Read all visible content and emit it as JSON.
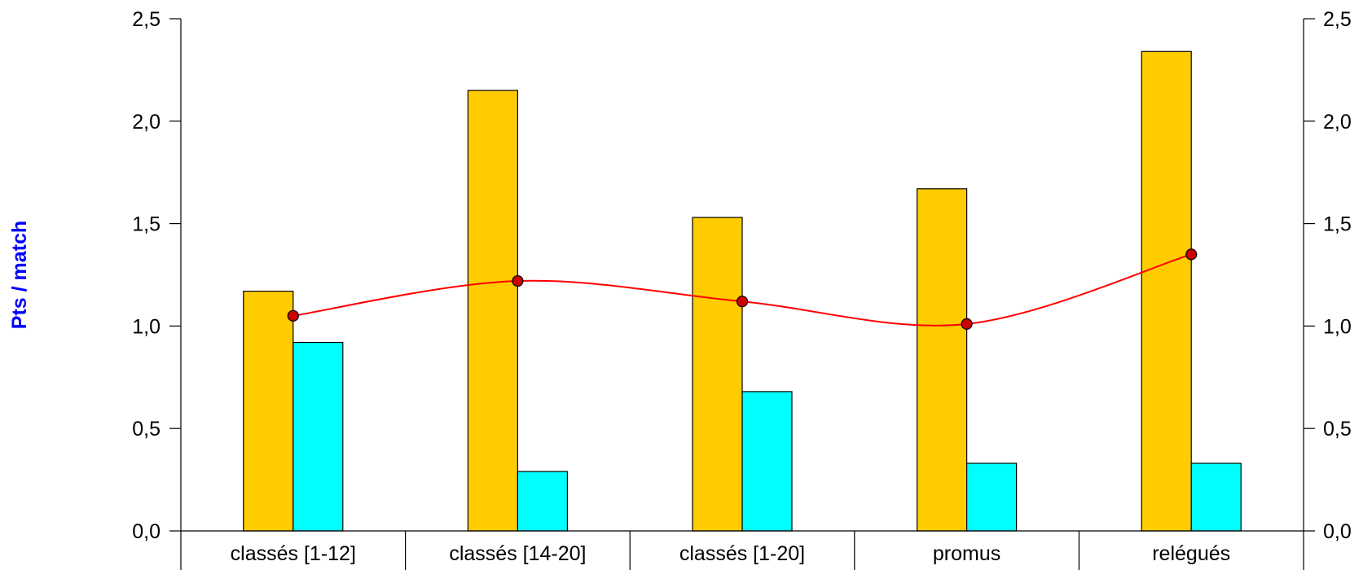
{
  "chart_data": {
    "type": "bar",
    "categories": [
      "classés [1-12]",
      "classés [14-20]",
      "classés [1-20]",
      "promus",
      "relégués"
    ],
    "series": [
      {
        "type": "bar",
        "color": "#FFCC00",
        "values": [
          1.17,
          2.15,
          1.53,
          1.67,
          2.34
        ]
      },
      {
        "type": "bar",
        "color": "#00FFFF",
        "values": [
          0.92,
          0.29,
          0.68,
          0.33,
          0.33
        ]
      },
      {
        "type": "line",
        "color": "#FF0000",
        "marker_color": "#CC0000",
        "values": [
          1.05,
          1.22,
          1.12,
          1.01,
          1.35
        ]
      }
    ],
    "ylabel": "Pts / match",
    "ylabel_color": "#0000FF",
    "ylim": [
      0,
      2.5
    ],
    "yticks": [
      "0,0",
      "0,5",
      "1,0",
      "1,5",
      "2,0",
      "2,5"
    ],
    "secondary_yticks": [
      "0,0",
      "0,5",
      "1,0",
      "1,5",
      "2,0",
      "2,5"
    ],
    "grid": false,
    "line_smoothed": true
  }
}
